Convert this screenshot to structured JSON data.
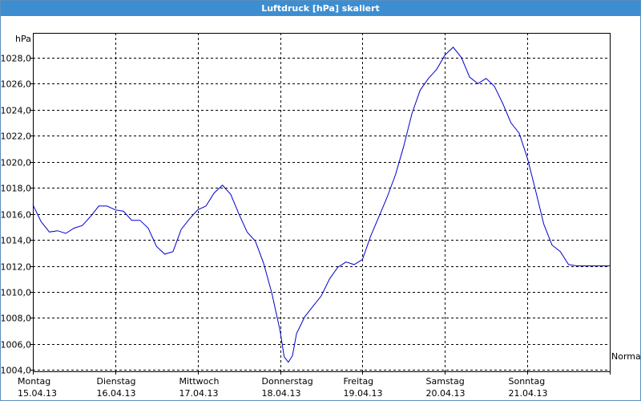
{
  "window": {
    "title": "Luftdruck [hPa] skaliert"
  },
  "chart_data": {
    "type": "line",
    "title": "Luftdruck [hPa] skaliert",
    "ylabel": "hPa",
    "xlabel": "",
    "ylim": [
      1003.9,
      1029.9
    ],
    "xlim": [
      0,
      7
    ],
    "grid": true,
    "y_ticks": [
      1004.0,
      1006.0,
      1008.0,
      1010.0,
      1012.0,
      1014.0,
      1016.0,
      1018.0,
      1020.0,
      1022.0,
      1024.0,
      1026.0,
      1028.0
    ],
    "y_tick_labels": [
      "1004,0",
      "1006,0",
      "1008,0",
      "1010,0",
      "1012,0",
      "1014,0",
      "1016,0",
      "1018,0",
      "1020,0",
      "1022,0",
      "1024,0",
      "1026,0",
      "1028,0"
    ],
    "x_ticks": [
      {
        "day": "Montag",
        "date": "15.04.13"
      },
      {
        "day": "Dienstag",
        "date": "16.04.13"
      },
      {
        "day": "Mittwoch",
        "date": "17.04.13"
      },
      {
        "day": "Donnerstag",
        "date": "18.04.13"
      },
      {
        "day": "Freitag",
        "date": "19.04.13"
      },
      {
        "day": "Samstag",
        "date": "20.04.13"
      },
      {
        "day": "Sonntag",
        "date": "21.04.13"
      }
    ],
    "reference_line": {
      "label": "Normal"
    },
    "series": [
      {
        "color": "#0000cc",
        "x": [
          0.0,
          0.1,
          0.2,
          0.3,
          0.4,
          0.5,
          0.6,
          0.7,
          0.8,
          0.9,
          1.0,
          1.1,
          1.2,
          1.3,
          1.4,
          1.5,
          1.6,
          1.7,
          1.8,
          1.9,
          2.0,
          2.1,
          2.2,
          2.3,
          2.4,
          2.5,
          2.6,
          2.7,
          2.8,
          2.9,
          3.0,
          3.05,
          3.1,
          3.15,
          3.2,
          3.3,
          3.4,
          3.5,
          3.6,
          3.7,
          3.8,
          3.9,
          4.0,
          4.1,
          4.2,
          4.3,
          4.4,
          4.5,
          4.6,
          4.7,
          4.8,
          4.9,
          5.0,
          5.1,
          5.2,
          5.3,
          5.4,
          5.5,
          5.6,
          5.7,
          5.8,
          5.9,
          6.0,
          6.1,
          6.2,
          6.3,
          6.4,
          6.5,
          6.6,
          6.7,
          6.8,
          6.9,
          7.0
        ],
        "y": [
          1016.7,
          1015.4,
          1014.6,
          1014.7,
          1014.5,
          1014.9,
          1015.1,
          1015.8,
          1016.6,
          1016.6,
          1016.3,
          1016.2,
          1015.5,
          1015.5,
          1014.9,
          1013.5,
          1012.9,
          1013.1,
          1014.8,
          1015.6,
          1016.3,
          1016.6,
          1017.6,
          1018.2,
          1017.5,
          1016.0,
          1014.6,
          1013.9,
          1012.2,
          1009.9,
          1007.0,
          1005.0,
          1004.6,
          1005.1,
          1006.8,
          1008.1,
          1008.9,
          1009.7,
          1011.0,
          1011.9,
          1012.3,
          1012.1,
          1012.5,
          1014.3,
          1015.8,
          1017.3,
          1019.0,
          1021.2,
          1023.7,
          1025.5,
          1026.4,
          1027.1,
          1028.2,
          1028.8,
          1028.0,
          1026.5,
          1026.0,
          1026.4,
          1025.8,
          1024.5,
          1023.0,
          1022.2,
          1020.3,
          1017.8,
          1015.2,
          1013.6,
          1013.1,
          1012.1,
          1012.0,
          1012.0,
          1012.0,
          1012.0,
          1012.0
        ]
      }
    ]
  }
}
